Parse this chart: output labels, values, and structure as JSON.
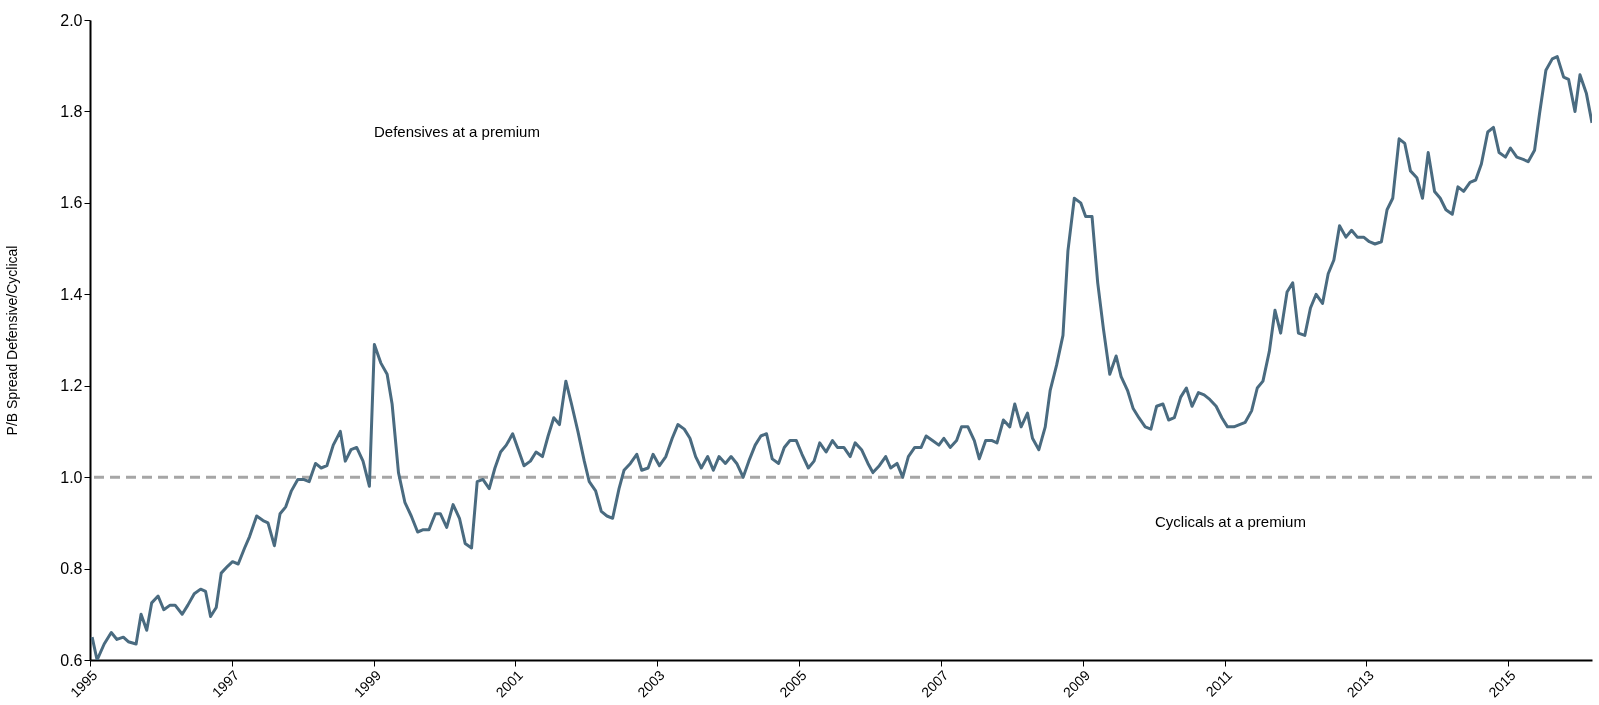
{
  "chart_data": {
    "type": "line",
    "ylabel": "P/B Spread Defensive/Cyclical",
    "annotations": [
      "Defensives at a premium",
      "Cyclicals at a premium"
    ],
    "xlim": [
      1995,
      2016.18
    ],
    "xticks": [
      1995,
      1997,
      1999,
      2001,
      2003,
      2005,
      2007,
      2009,
      2011,
      2013,
      2015
    ],
    "ylim": [
      0.6,
      2.0
    ],
    "yticks": [
      0.6,
      0.8,
      {
        "value": 1,
        "label": "1.0"
      },
      1.2,
      1.4,
      1.6,
      1.8,
      {
        "value": 2,
        "label": "2.0"
      }
    ],
    "grid": false,
    "legend": false,
    "marker": "none",
    "line_style": "solid",
    "ref_lines": [
      {
        "axis": "y",
        "value": 1.0,
        "label": null,
        "color": "#a6a6a6",
        "line_style": "dashed"
      }
    ],
    "series": [
      {
        "color": "#4a6b80",
        "x": [
          1995.03,
          1995.1,
          1995.2,
          1995.3,
          1995.38,
          1995.47,
          1995.54,
          1995.65,
          1995.72,
          1995.8,
          1995.87,
          1995.96,
          1996.04,
          1996.13,
          1996.2,
          1996.3,
          1996.38,
          1996.47,
          1996.56,
          1996.63,
          1996.7,
          1996.78,
          1996.85,
          1996.94,
          1997.01,
          1997.09,
          1997.18,
          1997.25,
          1997.35,
          1997.44,
          1997.51,
          1997.6,
          1997.68,
          1997.76,
          1997.84,
          1997.93,
          1998.01,
          1998.09,
          1998.18,
          1998.26,
          1998.34,
          1998.43,
          1998.53,
          1998.6,
          1998.68,
          1998.76,
          1998.85,
          1998.94,
          1999.01,
          1999.1,
          1999.19,
          1999.26,
          1999.35,
          1999.44,
          1999.53,
          1999.62,
          1999.7,
          1999.78,
          1999.87,
          1999.94,
          2000.03,
          2000.12,
          2000.21,
          2000.29,
          2000.38,
          2000.46,
          2000.54,
          2000.63,
          2000.71,
          2000.79,
          2000.87,
          2000.96,
          2001.04,
          2001.12,
          2001.21,
          2001.29,
          2001.38,
          2001.46,
          2001.54,
          2001.62,
          2001.71,
          2001.79,
          2001.88,
          2001.97,
          2002.04,
          2002.13,
          2002.21,
          2002.29,
          2002.37,
          2002.46,
          2002.53,
          2002.62,
          2002.71,
          2002.78,
          2002.87,
          2002.94,
          2003.03,
          2003.12,
          2003.21,
          2003.29,
          2003.38,
          2003.46,
          2003.54,
          2003.62,
          2003.71,
          2003.79,
          2003.87,
          2003.96,
          2004.04,
          2004.12,
          2004.21,
          2004.29,
          2004.38,
          2004.46,
          2004.54,
          2004.62,
          2004.71,
          2004.79,
          2004.87,
          2004.96,
          2005.04,
          2005.13,
          2005.21,
          2005.29,
          2005.38,
          2005.47,
          2005.54,
          2005.63,
          2005.72,
          2005.79,
          2005.88,
          2005.97,
          2006.04,
          2006.13,
          2006.22,
          2006.29,
          2006.38,
          2006.46,
          2006.54,
          2006.63,
          2006.72,
          2006.79,
          2006.88,
          2006.97,
          2007.04,
          2007.13,
          2007.22,
          2007.29,
          2007.38,
          2007.47,
          2007.54,
          2007.63,
          2007.72,
          2007.79,
          2007.88,
          2007.97,
          2008.04,
          2008.13,
          2008.22,
          2008.29,
          2008.38,
          2008.47,
          2008.54,
          2008.63,
          2008.72,
          2008.79,
          2008.88,
          2008.97,
          2009.04,
          2009.13,
          2009.21,
          2009.29,
          2009.38,
          2009.47,
          2009.54,
          2009.63,
          2009.71,
          2009.79,
          2009.88,
          2009.96,
          2010.04,
          2010.13,
          2010.21,
          2010.29,
          2010.38,
          2010.46,
          2010.54,
          2010.63,
          2010.71,
          2010.79,
          2010.88,
          2010.96,
          2011.04,
          2011.13,
          2011.21,
          2011.29,
          2011.38,
          2011.46,
          2011.54,
          2011.63,
          2011.71,
          2011.79,
          2011.88,
          2011.96,
          2012.04,
          2012.13,
          2012.21,
          2012.29,
          2012.38,
          2012.46,
          2012.54,
          2012.62,
          2012.71,
          2012.79,
          2012.87,
          2012.96,
          2013.04,
          2013.12,
          2013.21,
          2013.29,
          2013.37,
          2013.46,
          2013.54,
          2013.62,
          2013.71,
          2013.79,
          2013.87,
          2013.96,
          2014.04,
          2014.12,
          2014.21,
          2014.29,
          2014.37,
          2014.46,
          2014.54,
          2014.62,
          2014.71,
          2014.79,
          2014.87,
          2014.96,
          2015.03,
          2015.12,
          2015.21,
          2015.28,
          2015.37,
          2015.44,
          2015.53,
          2015.62,
          2015.69,
          2015.78,
          2015.85,
          2015.94,
          2016.01,
          2016.1,
          2016.18
        ],
        "values": [
          0.65,
          0.6,
          0.635,
          0.66,
          0.645,
          0.65,
          0.64,
          0.635,
          0.7,
          0.665,
          0.725,
          0.74,
          0.71,
          0.72,
          0.72,
          0.7,
          0.72,
          0.745,
          0.755,
          0.75,
          0.695,
          0.715,
          0.79,
          0.805,
          0.815,
          0.81,
          0.845,
          0.87,
          0.915,
          0.905,
          0.9,
          0.85,
          0.92,
          0.935,
          0.97,
          0.995,
          0.995,
          0.99,
          1.03,
          1.02,
          1.025,
          1.07,
          1.1,
          1.035,
          1.06,
          1.065,
          1.035,
          0.98,
          1.29,
          1.25,
          1.225,
          1.16,
          1.01,
          0.945,
          0.915,
          0.88,
          0.885,
          0.885,
          0.92,
          0.92,
          0.89,
          0.94,
          0.91,
          0.855,
          0.845,
          0.99,
          0.995,
          0.975,
          1.02,
          1.055,
          1.07,
          1.095,
          1.06,
          1.025,
          1.035,
          1.055,
          1.045,
          1.09,
          1.13,
          1.115,
          1.21,
          1.16,
          1.1,
          1.035,
          0.99,
          0.97,
          0.925,
          0.915,
          0.91,
          0.975,
          1.015,
          1.03,
          1.05,
          1.015,
          1.02,
          1.05,
          1.025,
          1.045,
          1.085,
          1.115,
          1.105,
          1.085,
          1.045,
          1.02,
          1.045,
          1.015,
          1.045,
          1.03,
          1.045,
          1.03,
          1.0,
          1.035,
          1.07,
          1.09,
          1.095,
          1.04,
          1.03,
          1.065,
          1.08,
          1.08,
          1.05,
          1.02,
          1.035,
          1.075,
          1.055,
          1.08,
          1.065,
          1.065,
          1.045,
          1.075,
          1.06,
          1.03,
          1.01,
          1.025,
          1.045,
          1.02,
          1.03,
          1.0,
          1.045,
          1.065,
          1.065,
          1.09,
          1.08,
          1.07,
          1.085,
          1.065,
          1.08,
          1.11,
          1.11,
          1.08,
          1.04,
          1.08,
          1.08,
          1.075,
          1.125,
          1.11,
          1.16,
          1.11,
          1.14,
          1.085,
          1.06,
          1.11,
          1.19,
          1.245,
          1.31,
          1.495,
          1.61,
          1.6,
          1.57,
          1.57,
          1.425,
          1.325,
          1.225,
          1.265,
          1.22,
          1.19,
          1.15,
          1.13,
          1.11,
          1.105,
          1.155,
          1.16,
          1.125,
          1.13,
          1.175,
          1.195,
          1.155,
          1.185,
          1.18,
          1.17,
          1.155,
          1.13,
          1.11,
          1.11,
          1.115,
          1.12,
          1.145,
          1.195,
          1.21,
          1.275,
          1.365,
          1.315,
          1.405,
          1.425,
          1.315,
          1.31,
          1.37,
          1.4,
          1.38,
          1.445,
          1.475,
          1.55,
          1.525,
          1.54,
          1.525,
          1.525,
          1.515,
          1.51,
          1.515,
          1.585,
          1.61,
          1.74,
          1.73,
          1.67,
          1.655,
          1.61,
          1.71,
          1.625,
          1.61,
          1.585,
          1.575,
          1.635,
          1.625,
          1.645,
          1.65,
          1.685,
          1.755,
          1.765,
          1.71,
          1.7,
          1.72,
          1.7,
          1.695,
          1.69,
          1.715,
          1.795,
          1.89,
          1.915,
          1.92,
          1.875,
          1.87,
          1.8,
          1.88,
          1.84,
          1.775
        ]
      }
    ]
  }
}
